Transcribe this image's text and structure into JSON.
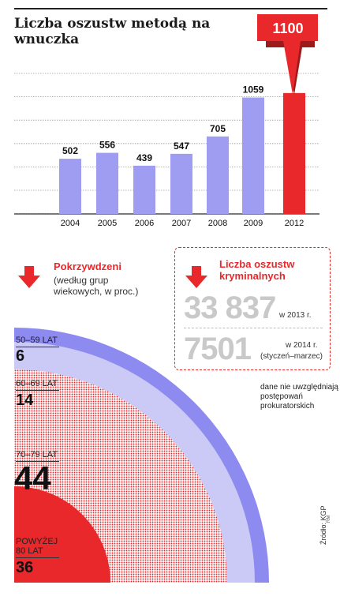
{
  "title": "Liczba oszustw metodą na wnuczka",
  "chart_data": [
    {
      "type": "bar",
      "title": "Liczba oszustw metodą na wnuczka",
      "categories": [
        "2004",
        "2005",
        "2006",
        "2007",
        "2008",
        "2009",
        "2012"
      ],
      "values": [
        502,
        556,
        439,
        547,
        705,
        1059,
        1100
      ],
      "data_labels": [
        "502",
        "556",
        "439",
        "547",
        "705",
        "1059",
        "1100"
      ],
      "highlight_index": 6,
      "highlight_color": "#e8282b",
      "bar_color": "#9f9df2",
      "grid": true,
      "ylim": [
        0,
        1300
      ]
    },
    {
      "type": "pie",
      "title": "Pokrzywdzeni",
      "subtitle": "(według grup wiekowych, w proc.)",
      "categories": [
        "50–59 LAT",
        "60–69 LAT",
        "70–79 LAT",
        "POWYŻEJ 80 LAT"
      ],
      "values": [
        6,
        14,
        44,
        36
      ],
      "colors": [
        "#8d8af0",
        "#cbcaf6",
        "#f06a6c",
        "#e8282b"
      ]
    }
  ],
  "pokrzywdzeni": {
    "title": "Pokrzywdzeni",
    "subtitle": "(według grup wiekowych, w proc.)",
    "groups": [
      {
        "label": "50–59 LAT",
        "value": "6"
      },
      {
        "label": "60–69 LAT",
        "value": "14"
      },
      {
        "label": "70–79 LAT",
        "value": "44"
      },
      {
        "label_line1": "POWYŻEJ",
        "label_line2": "80 LAT",
        "value": "36"
      }
    ]
  },
  "kryminalne": {
    "title": "Liczba oszustw kryminalnych",
    "stat1_value": "33 837",
    "stat1_note": "w 2013 r.",
    "stat2_value": "7501",
    "stat2_note_a": "w 2014 r.",
    "stat2_note_b": "(styczeń–marzec)"
  },
  "footnote": "dane nie uwzględ­niają postępowań prokuratorskich",
  "source": "Źródło: KGP",
  "credit": "RM",
  "colors": {
    "accent": "#e8282b",
    "bar": "#9f9df2",
    "ring_outer": "#8d8af0",
    "ring_mid": "#cbcaf6",
    "dots": "#e8282b",
    "stat_gray": "#c9c9c9"
  }
}
